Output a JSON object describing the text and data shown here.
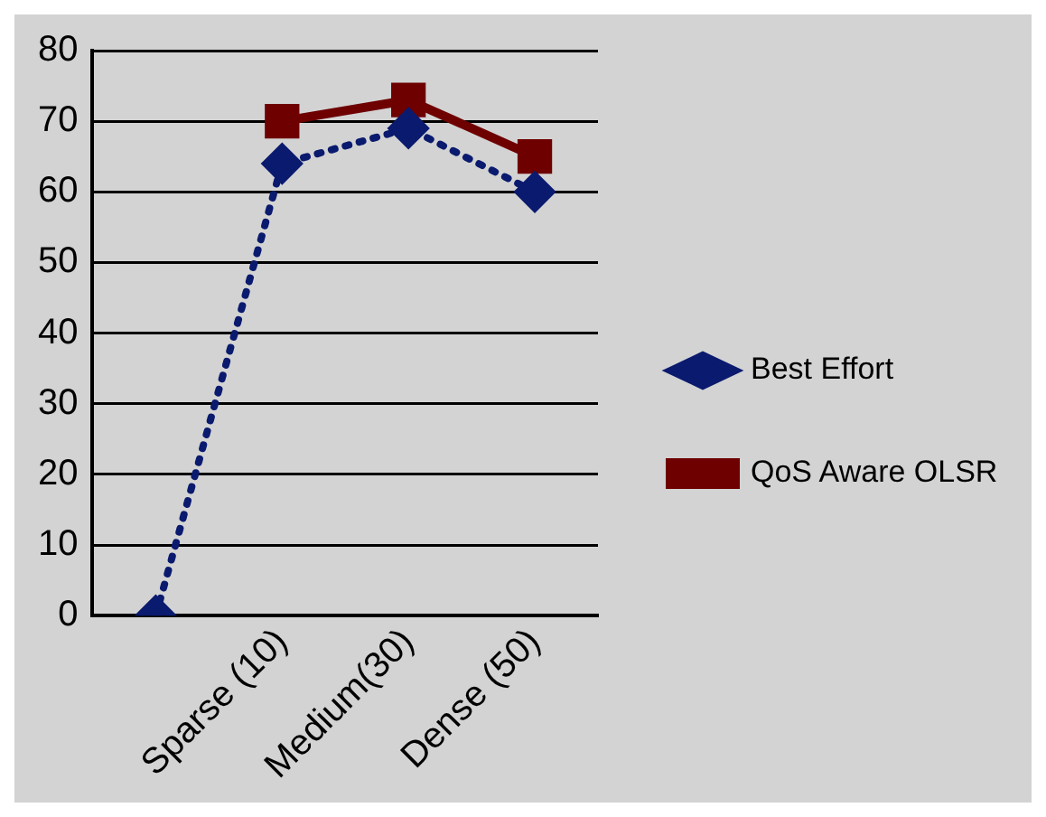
{
  "chart_data": {
    "type": "line",
    "categories": [
      null,
      "Sparse (10)",
      "Medium(30)",
      "Dense (50)"
    ],
    "series": [
      {
        "name": "Best Effort",
        "color": "#0a1a6e",
        "values": [
          0,
          64,
          69,
          60
        ],
        "line_style": "dotted",
        "marker": "diamond"
      },
      {
        "name": "QoS Aware OLSR",
        "color": "#6e0000",
        "values": [
          null,
          70,
          73,
          65
        ],
        "line_style": "solid",
        "marker": "square"
      }
    ],
    "ylim": [
      0,
      80
    ],
    "yticks": [
      0,
      10,
      20,
      30,
      40,
      50,
      60,
      70,
      80
    ],
    "grid": "y",
    "legend": "right"
  }
}
